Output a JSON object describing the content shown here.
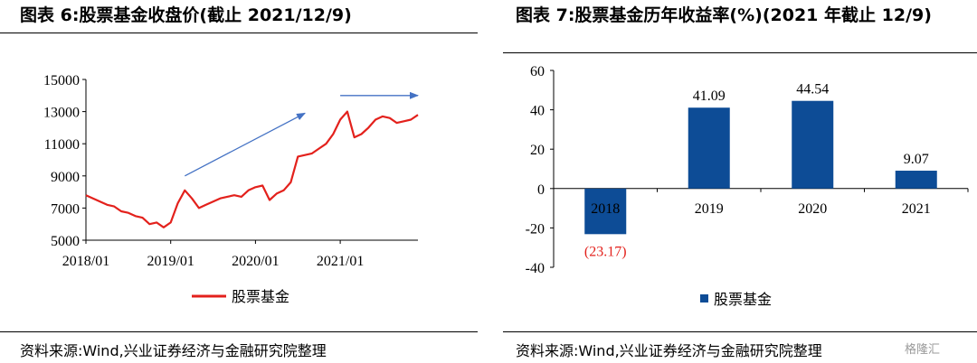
{
  "charts": [
    {
      "title": "图表 6:股票基金收盘价(截止 2021/12/9)",
      "source": "资料来源:Wind,兴业证券经济与金融研究院整理"
    },
    {
      "title": "图表 7:股票基金历年收益率(%)(2021 年截止 12/9)",
      "source": "资料来源:Wind,兴业证券经济与金融研究院整理"
    }
  ],
  "watermark": "格隆汇",
  "chart_data": [
    {
      "type": "line",
      "title": "图表 6:股票基金收盘价(截止 2021/12/9)",
      "xlabel": "",
      "ylabel": "",
      "ylim": [
        5000,
        15000
      ],
      "yticks": [
        "5000",
        "7000",
        "9000",
        "11000",
        "13000",
        "15000"
      ],
      "xticks": [
        "2018/01",
        "2019/01",
        "2020/01",
        "2021/01"
      ],
      "grid": false,
      "legend": "bottom-center",
      "series": [
        {
          "name": "股票基金",
          "color": "#e3211c",
          "x": [
            "2018/01",
            "2018/02",
            "2018/03",
            "2018/04",
            "2018/05",
            "2018/06",
            "2018/07",
            "2018/08",
            "2018/09",
            "2018/10",
            "2018/11",
            "2018/12",
            "2019/01",
            "2019/02",
            "2019/03",
            "2019/04",
            "2019/05",
            "2019/06",
            "2019/07",
            "2019/08",
            "2019/09",
            "2019/10",
            "2019/11",
            "2019/12",
            "2020/01",
            "2020/02",
            "2020/03",
            "2020/04",
            "2020/05",
            "2020/06",
            "2020/07",
            "2020/08",
            "2020/09",
            "2020/10",
            "2020/11",
            "2020/12",
            "2021/01",
            "2021/02",
            "2021/03",
            "2021/04",
            "2021/05",
            "2021/06",
            "2021/07",
            "2021/08",
            "2021/09",
            "2021/10",
            "2021/11",
            "2021/12"
          ],
          "y": [
            7800,
            7600,
            7400,
            7200,
            7100,
            6800,
            6700,
            6500,
            6400,
            6000,
            6100,
            5800,
            6100,
            7300,
            8100,
            7600,
            7000,
            7200,
            7400,
            7600,
            7700,
            7800,
            7700,
            8100,
            8300,
            8400,
            7500,
            7900,
            8100,
            8600,
            10200,
            10300,
            10400,
            10700,
            11000,
            11600,
            12500,
            13000,
            11400,
            11600,
            12000,
            12500,
            12700,
            12600,
            12300,
            12400,
            12500,
            12800
          ]
        }
      ],
      "annotations": [
        {
          "type": "arrow",
          "from": [
            "2019/03",
            9000
          ],
          "to": [
            "2020/08",
            12900
          ]
        },
        {
          "type": "arrow",
          "from": [
            "2021/01",
            14000
          ],
          "to": [
            "2021/12",
            14000
          ]
        }
      ]
    },
    {
      "type": "bar",
      "title": "图表 7:股票基金历年收益率(%)(2021 年截止 12/9)",
      "categories": [
        "2018",
        "2019",
        "2020",
        "2021"
      ],
      "ylim": [
        -40,
        60
      ],
      "yticks": [
        "-40",
        "-20",
        "0",
        "20",
        "40",
        "60"
      ],
      "grid": false,
      "legend": "bottom-center",
      "series": [
        {
          "name": "股票基金",
          "color": "#0d4c96",
          "values": [
            -23.17,
            41.09,
            44.54,
            9.07
          ],
          "labels": [
            "(23.17)",
            "41.09",
            "44.54",
            "9.07"
          ],
          "label_colors": [
            "#e3211c",
            "#000000",
            "#000000",
            "#000000"
          ]
        }
      ]
    }
  ]
}
